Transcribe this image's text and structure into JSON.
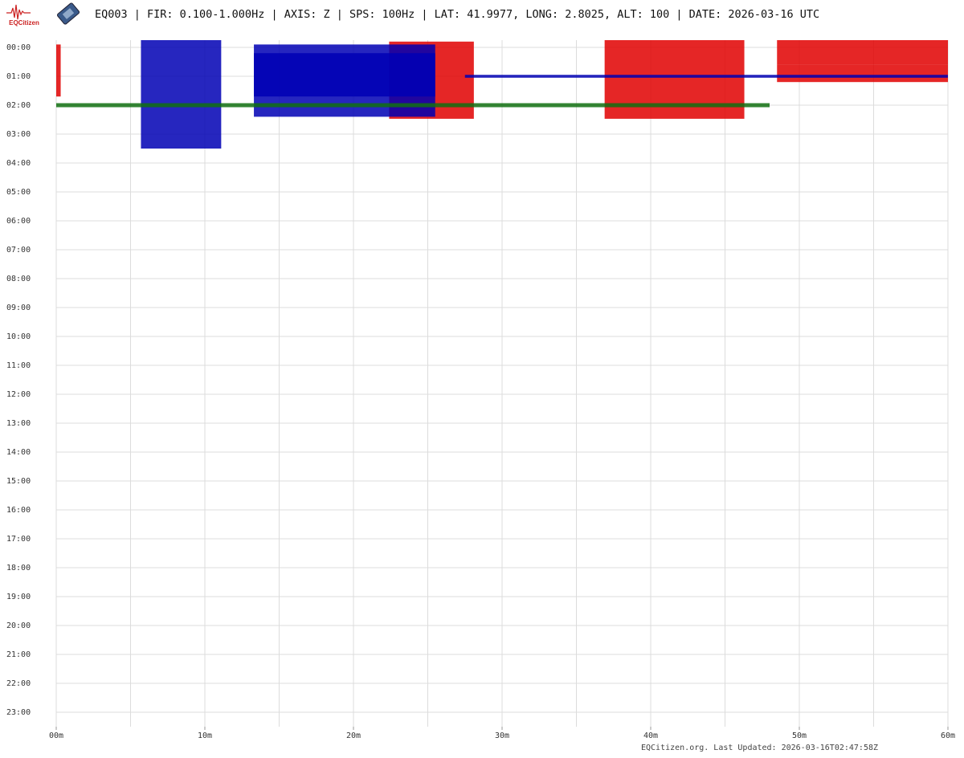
{
  "chart_data": {
    "type": "helicorder",
    "logo_text": "EQCitizen",
    "title": "EQ003 | FIR: 0.100-1.000Hz | AXIS: Z | SPS: 100Hz | LAT: 41.9977, LONG: 2.8025, ALT: 100 | DATE: 2026-03-16 UTC",
    "footer": "EQCitizen.org. Last Updated: 2026-03-16T02:47:58Z",
    "xlim": [
      0,
      60
    ],
    "xticks": [
      {
        "value": 0,
        "label": "00m"
      },
      {
        "value": 10,
        "label": "10m"
      },
      {
        "value": 20,
        "label": "20m"
      },
      {
        "value": 30,
        "label": "30m"
      },
      {
        "value": 40,
        "label": "40m"
      },
      {
        "value": 50,
        "label": "50m"
      },
      {
        "value": 60,
        "label": "60m"
      }
    ],
    "xgrid": [
      0,
      5,
      10,
      15,
      20,
      25,
      30,
      35,
      40,
      45,
      50,
      55,
      60
    ],
    "ylim": [
      -0.25,
      23.5
    ],
    "yticks": [
      {
        "value": 0,
        "label": "00:00"
      },
      {
        "value": 1,
        "label": "01:00"
      },
      {
        "value": 2,
        "label": "02:00"
      },
      {
        "value": 3,
        "label": "03:00"
      },
      {
        "value": 4,
        "label": "04:00"
      },
      {
        "value": 5,
        "label": "05:00"
      },
      {
        "value": 6,
        "label": "06:00"
      },
      {
        "value": 7,
        "label": "07:00"
      },
      {
        "value": 8,
        "label": "08:00"
      },
      {
        "value": 9,
        "label": "09:00"
      },
      {
        "value": 10,
        "label": "10:00"
      },
      {
        "value": 11,
        "label": "11:00"
      },
      {
        "value": 12,
        "label": "12:00"
      },
      {
        "value": 13,
        "label": "13:00"
      },
      {
        "value": 14,
        "label": "14:00"
      },
      {
        "value": 15,
        "label": "15:00"
      },
      {
        "value": 16,
        "label": "16:00"
      },
      {
        "value": 17,
        "label": "17:00"
      },
      {
        "value": 18,
        "label": "18:00"
      },
      {
        "value": 19,
        "label": "19:00"
      },
      {
        "value": 20,
        "label": "20:00"
      },
      {
        "value": 21,
        "label": "21:00"
      },
      {
        "value": 22,
        "label": "22:00"
      },
      {
        "value": 23,
        "label": "23:00"
      }
    ],
    "grid": true,
    "series": [
      {
        "color": "#e00000",
        "segments": [
          {
            "start": 0,
            "end": 0.3,
            "low": -0.1,
            "high": 1.7
          },
          {
            "start": 22.4,
            "end": 28.1,
            "low": -0.2,
            "high": 2.47
          },
          {
            "start": 36.9,
            "end": 46.3,
            "low": -0.25,
            "high": 2.47
          },
          {
            "start": 48.5,
            "end": 60,
            "low": -0.25,
            "high": 0.6
          },
          {
            "start": 48.5,
            "end": 60,
            "low": 0.6,
            "high": 1.2
          }
        ]
      },
      {
        "color": "#0000b4",
        "segments": [
          {
            "start": 5.7,
            "end": 11.1,
            "low": -0.25,
            "high": 3.5
          },
          {
            "start": 13.3,
            "end": 25.5,
            "low": 0.2,
            "high": 1.7
          },
          {
            "start": 13.3,
            "end": 25.5,
            "low": -0.1,
            "high": 2.4
          },
          {
            "start": 27.5,
            "end": 60,
            "low": 0.95,
            "high": 1.05
          }
        ]
      },
      {
        "color": "#107010",
        "segments": [
          {
            "start": 0,
            "end": 48,
            "low": 1.93,
            "high": 2.07
          }
        ]
      }
    ]
  }
}
